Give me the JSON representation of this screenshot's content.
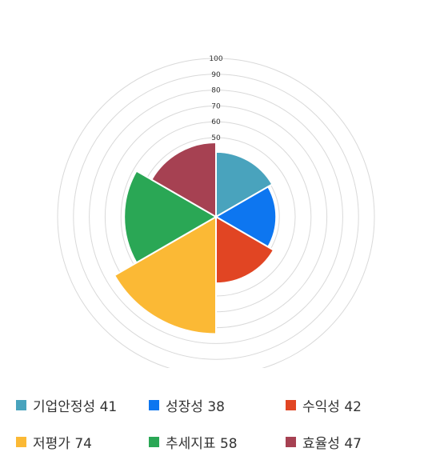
{
  "chart_data": {
    "type": "polar-area",
    "rlim": [
      0,
      100
    ],
    "grid": true,
    "tick_labels": [
      "50",
      "60",
      "70",
      "80",
      "90",
      "100"
    ],
    "categories": [
      "기업안정성",
      "성장성",
      "수익성",
      "저평가",
      "추세지표",
      "효율성"
    ],
    "values": [
      41,
      38,
      42,
      74,
      58,
      47
    ],
    "colors": [
      "#49a3bd",
      "#0d76f0",
      "#e14523",
      "#fbb935",
      "#2aa755",
      "#a64152"
    ],
    "legend_placement": "bottom",
    "legend": [
      {
        "label": "기업안정성 41",
        "color": "#49a3bd"
      },
      {
        "label": "성장성 38",
        "color": "#0d76f0"
      },
      {
        "label": "수익성 42",
        "color": "#e14523"
      },
      {
        "label": "저평가 74",
        "color": "#fbb935"
      },
      {
        "label": "추세지표 58",
        "color": "#2aa755"
      },
      {
        "label": "효율성 47",
        "color": "#a64152"
      }
    ]
  }
}
